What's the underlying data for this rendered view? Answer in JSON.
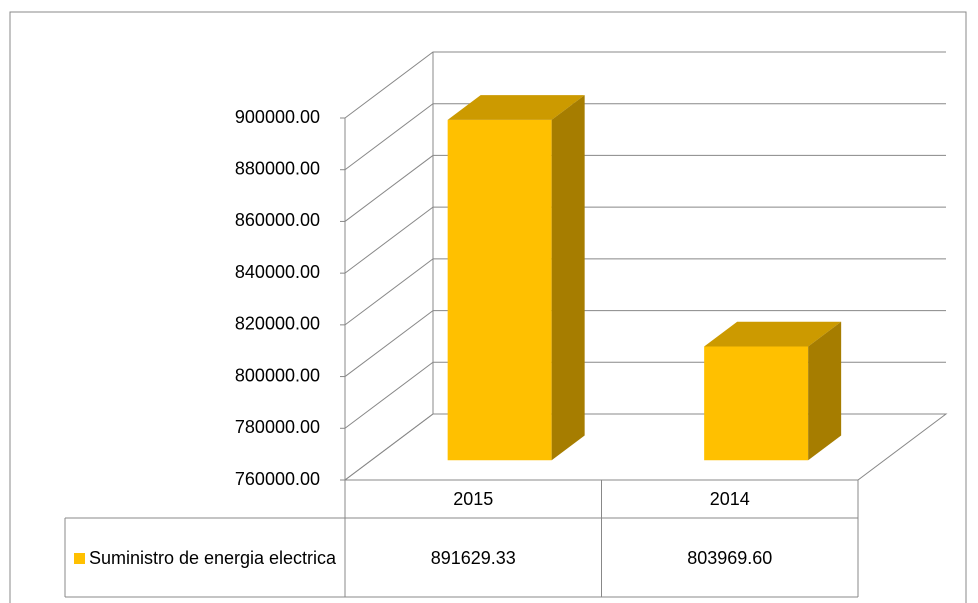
{
  "chart_data": {
    "type": "bar3d",
    "categories": [
      "2015",
      "2014"
    ],
    "series": [
      {
        "name": "Suministro de energia electrica",
        "color": "#ffc000",
        "values": [
          891629.33,
          803969.6
        ],
        "value_labels": [
          "891629.33",
          "803969.60"
        ]
      }
    ],
    "ylim": [
      760000,
      900000
    ],
    "yticks": [
      {
        "value": 760000,
        "label": "760000.00"
      },
      {
        "value": 780000,
        "label": "780000.00"
      },
      {
        "value": 800000,
        "label": "800000.00"
      },
      {
        "value": 820000,
        "label": "820000.00"
      },
      {
        "value": 840000,
        "label": "840000.00"
      },
      {
        "value": 860000,
        "label": "860000.00"
      },
      {
        "value": 880000,
        "label": "880000.00"
      },
      {
        "value": 900000,
        "label": "900000.00"
      }
    ],
    "grid": true,
    "data_table": true
  }
}
